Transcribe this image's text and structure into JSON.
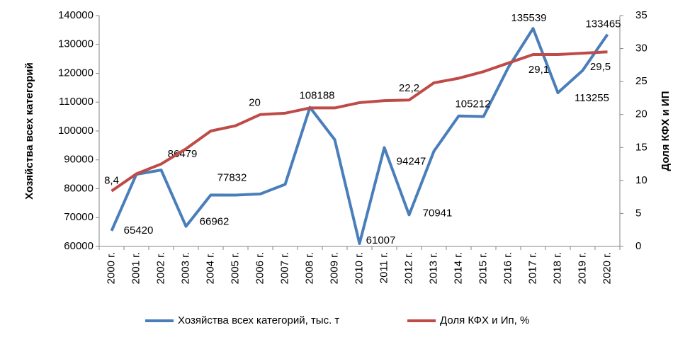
{
  "chart_data": {
    "type": "line",
    "categories": [
      "2000 г.",
      "2001 г.",
      "2002 г.",
      "2003 г.",
      "2004 г.",
      "2005 г.",
      "2006 г.",
      "2007 г.",
      "2008 г.",
      "2009 г.",
      "2010 г.",
      "2011 г.",
      "2012 г.",
      "2013 г.",
      "2014 г.",
      "2015 г.",
      "2016 г.",
      "2017 г.",
      "2018 г.",
      "2019 г.",
      "2020 г."
    ],
    "y_label": "Хозяйства всех категорий",
    "y2_label": "Доля КФХ и ИП",
    "ylim": [
      60000,
      140000
    ],
    "yticks": [
      60000,
      70000,
      80000,
      90000,
      100000,
      110000,
      120000,
      130000,
      140000
    ],
    "y2lim": [
      0,
      35
    ],
    "y2ticks": [
      0,
      5,
      10,
      15,
      20,
      25,
      30,
      35
    ],
    "legend": "bottom",
    "series": [
      {
        "name": "Хозяйства всех категорий, тыс. т",
        "color": "#4a7ebb",
        "values": [
          65420,
          85000,
          86479,
          66962,
          77832,
          77800,
          78200,
          81500,
          108188,
          97000,
          61007,
          94247,
          70941,
          93000,
          105212,
          105000,
          122000,
          135539,
          113255,
          121000,
          133465
        ],
        "value_labels": [
          "65420",
          null,
          "86479",
          "66962",
          "77832",
          null,
          null,
          null,
          "108188",
          null,
          "61007",
          "94247",
          "70941",
          null,
          "105212",
          null,
          null,
          "135539",
          "113255",
          null,
          "133465"
        ]
      },
      {
        "name": "Доля КФХ и Ип, %",
        "color": "#be4b48",
        "axis": "y2",
        "values": [
          8.4,
          11,
          12.5,
          14.8,
          17.5,
          18.3,
          20,
          20.2,
          21,
          21,
          21.8,
          22.1,
          22.2,
          24.8,
          25.5,
          26.5,
          27.8,
          29.1,
          29.1,
          29.3,
          29.5
        ],
        "value_labels": [
          "8,4",
          null,
          null,
          null,
          null,
          null,
          "20",
          null,
          null,
          null,
          null,
          null,
          "22,2",
          null,
          null,
          null,
          null,
          "29,1",
          null,
          null,
          "29,5"
        ]
      }
    ]
  }
}
